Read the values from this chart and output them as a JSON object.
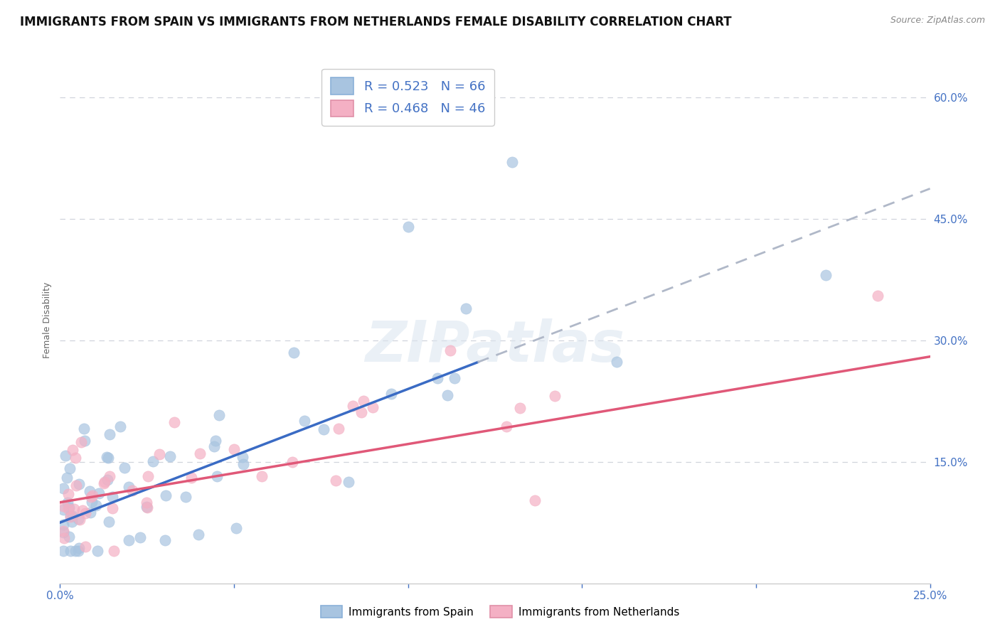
{
  "title": "IMMIGRANTS FROM SPAIN VS IMMIGRANTS FROM NETHERLANDS FEMALE DISABILITY CORRELATION CHART",
  "source": "Source: ZipAtlas.com",
  "ylabel": "Female Disability",
  "xlim": [
    0.0,
    0.25
  ],
  "ylim": [
    0.0,
    0.65
  ],
  "xticks": [
    0.0,
    0.05,
    0.1,
    0.15,
    0.2,
    0.25
  ],
  "yticks": [
    0.15,
    0.3,
    0.45,
    0.6
  ],
  "series1_label": "Immigrants from Spain",
  "series1_R": 0.523,
  "series1_N": 66,
  "series1_color": "#a8c4e0",
  "series1_line_color": "#3a6bc4",
  "series2_label": "Immigrants from Netherlands",
  "series2_R": 0.468,
  "series2_N": 46,
  "series2_color": "#f4b0c4",
  "series2_line_color": "#e05878",
  "dash_color": "#b0b8c8",
  "watermark": "ZIPatlas",
  "background_color": "#ffffff",
  "grid_color": "#d0d4dc",
  "title_fontsize": 12,
  "axis_label_fontsize": 9,
  "tick_fontsize": 11,
  "tick_color": "#4472c4",
  "legend_R_color": "#4472c4",
  "legend_N_color": "#4472c4"
}
